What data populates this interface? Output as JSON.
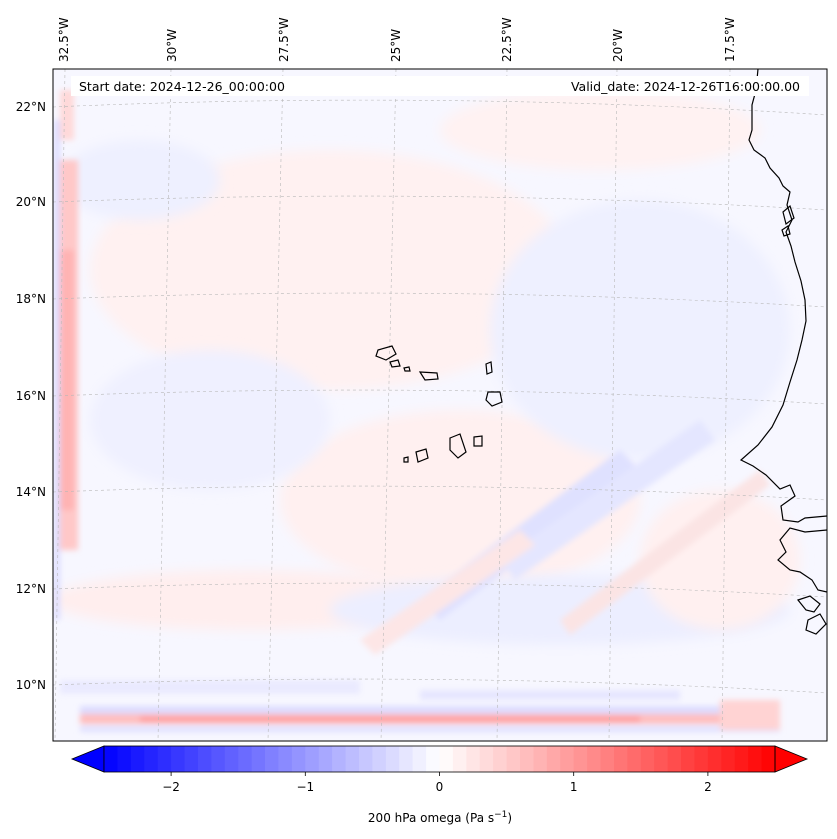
{
  "map": {
    "start_date": "Start date: 2024-12-26_00:00:00",
    "valid_date": "Valid_date: 2024-12-26T16:00:00.00",
    "lon_labels": [
      "32.5°W",
      "30°W",
      "27.5°W",
      "25°W",
      "22.5°W",
      "20°W",
      "17.5°W"
    ],
    "lat_labels": [
      "22°N",
      "20°N",
      "18°N",
      "16°N",
      "14°N",
      "12°N",
      "10°N"
    ],
    "features": [
      "coastline",
      "islands",
      "graticule"
    ]
  },
  "colorbar": {
    "ticks": [
      "−2",
      "−1",
      "0",
      "1",
      "2"
    ],
    "tick_values": [
      -2,
      -1,
      0,
      1,
      2
    ],
    "range": [
      -2.5,
      2.5
    ],
    "label_prefix": "200 hPa omega (Pa s",
    "label_exp": "−1",
    "label_suffix": ")",
    "colors": {
      "low": "#0000ff",
      "mid": "#ffffff",
      "high": "#ff0000"
    }
  }
}
